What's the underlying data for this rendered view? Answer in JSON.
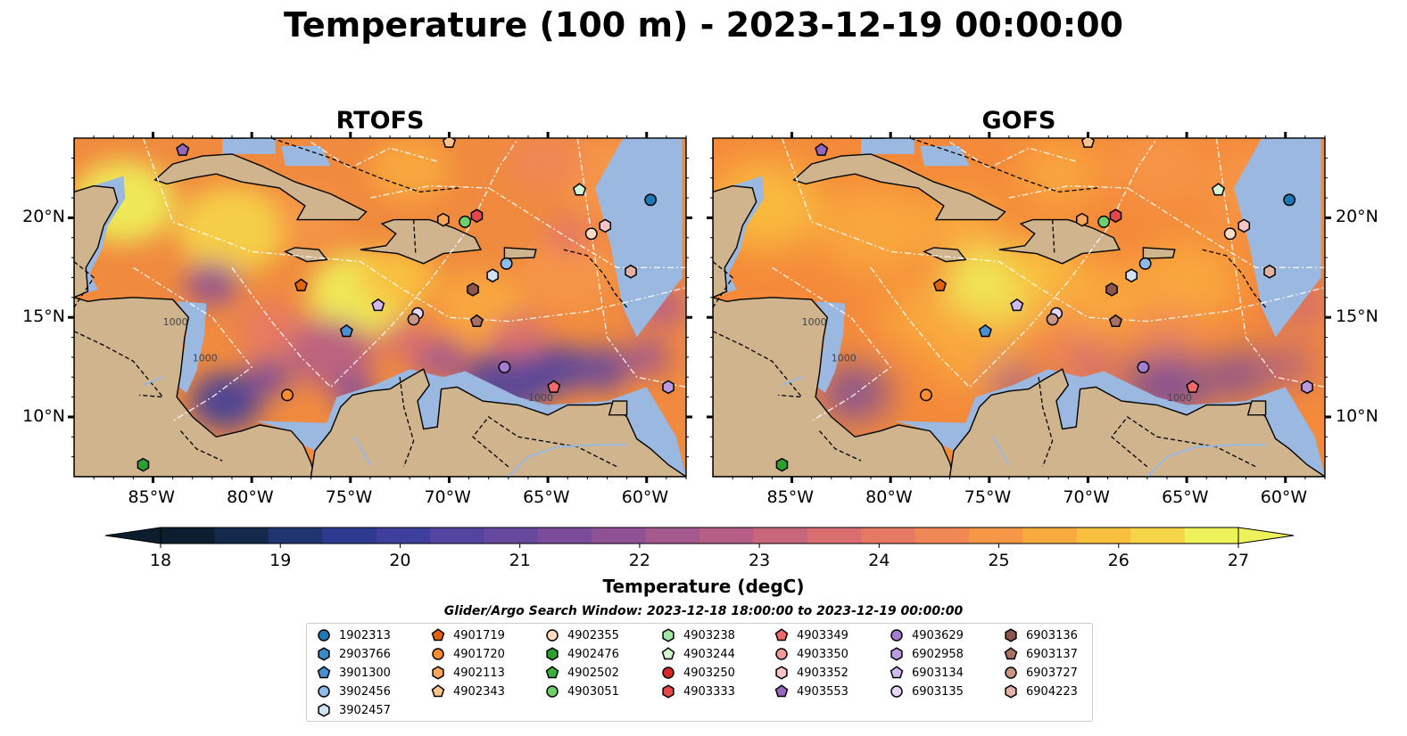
{
  "title": "Temperature (100 m) - 2023-12-19 00:00:00",
  "panels": [
    {
      "name": "RTOFS"
    },
    {
      "name": "GOFS"
    }
  ],
  "lat_ticks": [
    "10°N",
    "15°N",
    "20°N"
  ],
  "lon_ticks": [
    "85°W",
    "80°W",
    "75°W",
    "70°W",
    "65°W",
    "60°W"
  ],
  "contour_label": "1000",
  "colorbar": {
    "label": "Temperature (degC)",
    "min": 18,
    "max": 27,
    "ticks": [
      "18",
      "19",
      "20",
      "21",
      "22",
      "23",
      "24",
      "25",
      "26",
      "27"
    ],
    "colors": [
      "#0b1d2e",
      "#142a4d",
      "#1f3470",
      "#2d3a8f",
      "#3e3f9c",
      "#52449f",
      "#66489e",
      "#7b4c9a",
      "#8f5295",
      "#a3588e",
      "#b65e86",
      "#c8667c",
      "#d86e70",
      "#e67964",
      "#f08755",
      "#f69748",
      "#f9aa3e",
      "#f9bf3e",
      "#f6d548",
      "#eef25a"
    ]
  },
  "legend": {
    "title": "Glider/Argo Search Window: 2023-12-18 18:00:00 to 2023-12-19 00:00:00",
    "columns": [
      [
        {
          "id": "1902313",
          "marker": "circle",
          "color": "#1f77b4"
        },
        {
          "id": "2903766",
          "marker": "hexagon",
          "color": "#3b89c4"
        },
        {
          "id": "3901300",
          "marker": "pentagon",
          "color": "#4a90d0"
        },
        {
          "id": "3902456",
          "marker": "circle",
          "color": "#8bbcea"
        },
        {
          "id": "3902457",
          "marker": "hexagon",
          "color": "#cfe4f7"
        }
      ],
      [
        {
          "id": "4901719",
          "marker": "pentagon",
          "color": "#e0620f"
        },
        {
          "id": "4901720",
          "marker": "circle",
          "color": "#ff8c2e"
        },
        {
          "id": "4902113",
          "marker": "hexagon",
          "color": "#ffa65a"
        },
        {
          "id": "4902343",
          "marker": "pentagon",
          "color": "#ffc38d"
        }
      ],
      [
        {
          "id": "4902355",
          "marker": "circle",
          "color": "#ffdcc0"
        },
        {
          "id": "4902476",
          "marker": "hexagon",
          "color": "#2ca02c"
        },
        {
          "id": "4902502",
          "marker": "pentagon",
          "color": "#3bb13b"
        },
        {
          "id": "4903051",
          "marker": "circle",
          "color": "#6cd16c"
        }
      ],
      [
        {
          "id": "4903238",
          "marker": "hexagon",
          "color": "#a3e6a3"
        },
        {
          "id": "4903244",
          "marker": "pentagon",
          "color": "#d3f7d3"
        },
        {
          "id": "4903250",
          "marker": "circle",
          "color": "#d62728"
        },
        {
          "id": "4903333",
          "marker": "hexagon",
          "color": "#e8474a"
        }
      ],
      [
        {
          "id": "4903349",
          "marker": "pentagon",
          "color": "#f06a6c"
        },
        {
          "id": "4903350",
          "marker": "circle",
          "color": "#f59a9b"
        },
        {
          "id": "4903352",
          "marker": "hexagon",
          "color": "#fbc4c4"
        },
        {
          "id": "4903553",
          "marker": "pentagon",
          "color": "#9467bd"
        }
      ],
      [
        {
          "id": "4903629",
          "marker": "circle",
          "color": "#a27fd0"
        },
        {
          "id": "6902958",
          "marker": "hexagon",
          "color": "#b89be0"
        },
        {
          "id": "6903134",
          "marker": "pentagon",
          "color": "#d0b9ee"
        },
        {
          "id": "6903135",
          "marker": "circle",
          "color": "#e6d6fa"
        }
      ],
      [
        {
          "id": "6903136",
          "marker": "hexagon",
          "color": "#8c564b"
        },
        {
          "id": "6903137",
          "marker": "pentagon",
          "color": "#a8705f"
        },
        {
          "id": "6903727",
          "marker": "circle",
          "color": "#c99683"
        },
        {
          "id": "6904223",
          "marker": "hexagon",
          "color": "#e3b2a5"
        }
      ]
    ]
  },
  "floats": [
    {
      "id": "1902313",
      "lon": -59.8,
      "lat": 20.9
    },
    {
      "id": "3901300",
      "lon": -75.2,
      "lat": 14.3
    },
    {
      "id": "3902456",
      "lon": -67.1,
      "lat": 17.7
    },
    {
      "id": "3902457",
      "lon": -67.8,
      "lat": 17.1
    },
    {
      "id": "4901719",
      "lon": -77.5,
      "lat": 16.6
    },
    {
      "id": "4901720",
      "lon": -78.2,
      "lat": 11.1
    },
    {
      "id": "4902343",
      "lon": -70.0,
      "lat": 23.8
    },
    {
      "id": "4902355",
      "lon": -62.8,
      "lat": 19.2
    },
    {
      "id": "4902113",
      "lon": -70.3,
      "lat": 19.9
    },
    {
      "id": "4902476",
      "lon": -85.5,
      "lat": 7.6
    },
    {
      "id": "4903051",
      "lon": -69.2,
      "lat": 19.8
    },
    {
      "id": "4903244",
      "lon": -63.4,
      "lat": 21.4
    },
    {
      "id": "4903333",
      "lon": -68.6,
      "lat": 20.1
    },
    {
      "id": "4903349",
      "lon": -64.7,
      "lat": 11.5
    },
    {
      "id": "4903352",
      "lon": -62.1,
      "lat": 19.6
    },
    {
      "id": "4903553",
      "lon": -83.5,
      "lat": 23.4
    },
    {
      "id": "4903629",
      "lon": -67.2,
      "lat": 12.5
    },
    {
      "id": "6902958",
      "lon": -58.9,
      "lat": 11.5
    },
    {
      "id": "6903134",
      "lon": -73.6,
      "lat": 15.6
    },
    {
      "id": "6903135",
      "lon": -71.6,
      "lat": 15.2
    },
    {
      "id": "6903136",
      "lon": -68.8,
      "lat": 16.4
    },
    {
      "id": "6903137",
      "lon": -68.6,
      "lat": 14.8
    },
    {
      "id": "6904223",
      "lon": -60.8,
      "lat": 17.3
    },
    {
      "id": "6903727",
      "lon": -71.8,
      "lat": 14.9
    }
  ]
}
